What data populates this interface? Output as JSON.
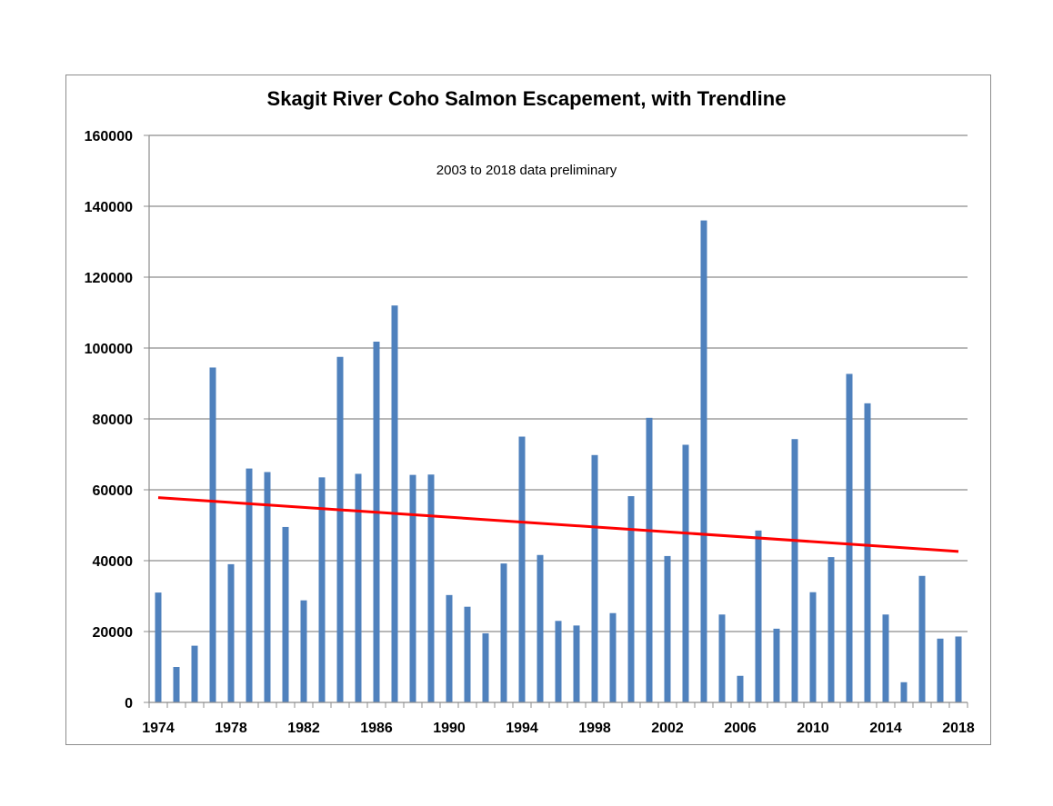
{
  "chart_data": {
    "type": "bar",
    "title": "Skagit River Coho Salmon Escapement, with Trendline",
    "annotation": "2003 to 2018 data preliminary",
    "xlabel": "",
    "ylabel": "",
    "ylim": [
      0,
      160000
    ],
    "yticks": [
      0,
      20000,
      40000,
      60000,
      80000,
      100000,
      120000,
      140000,
      160000
    ],
    "xtick_labels": [
      "1974",
      "1978",
      "1982",
      "1986",
      "1990",
      "1994",
      "1998",
      "2002",
      "2006",
      "2010",
      "2014",
      "2018"
    ],
    "grid": true,
    "x": [
      1974,
      1975,
      1976,
      1977,
      1978,
      1979,
      1980,
      1981,
      1982,
      1983,
      1984,
      1985,
      1986,
      1987,
      1988,
      1989,
      1990,
      1991,
      1992,
      1993,
      1994,
      1995,
      1996,
      1997,
      1998,
      1999,
      2000,
      2001,
      2002,
      2003,
      2004,
      2005,
      2006,
      2007,
      2008,
      2009,
      2010,
      2011,
      2012,
      2013,
      2014,
      2015,
      2016,
      2017,
      2018
    ],
    "values": [
      31000,
      10000,
      16000,
      94500,
      39000,
      66000,
      65000,
      49500,
      28800,
      63500,
      97500,
      64500,
      101800,
      112000,
      64200,
      64300,
      30300,
      27000,
      19500,
      39200,
      75000,
      41600,
      23000,
      21700,
      69800,
      25200,
      58200,
      80300,
      41300,
      72700,
      136000,
      24800,
      7500,
      48500,
      20800,
      74300,
      31100,
      41000,
      92700,
      84400,
      24800,
      5700,
      35700,
      18000,
      18600
    ],
    "bar_color": "#4f81bd",
    "trendline": {
      "name": "",
      "color": "#ff0000",
      "x": [
        1974,
        2018
      ],
      "y": [
        57800,
        42600
      ]
    }
  }
}
